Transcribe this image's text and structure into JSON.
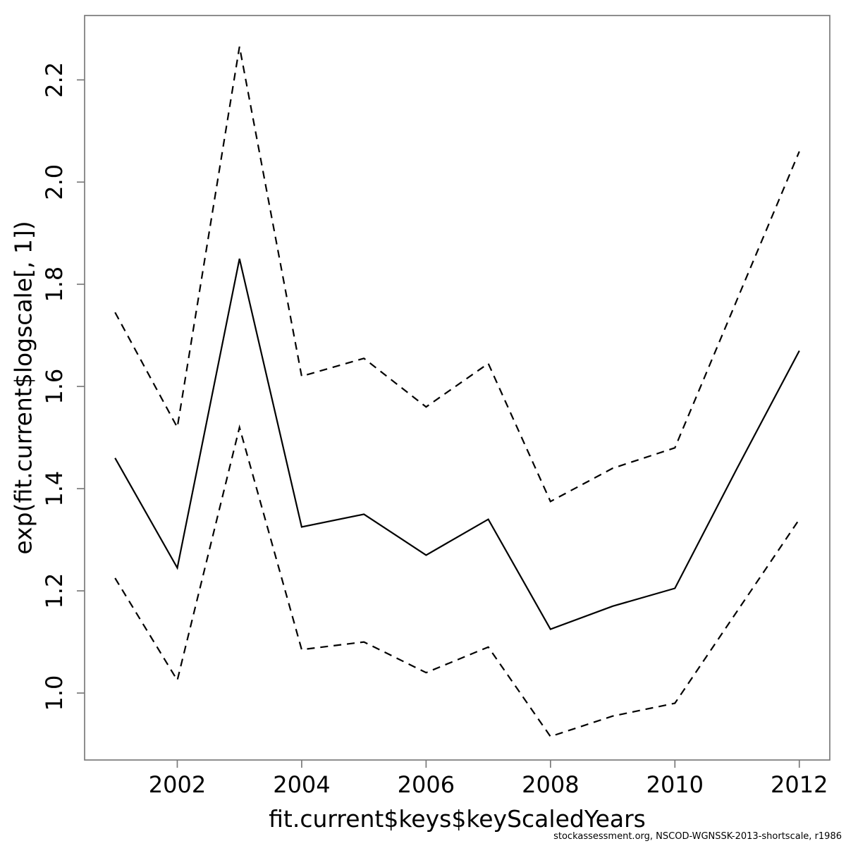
{
  "chart_data": {
    "type": "line",
    "title": "",
    "xlabel": "fit.current$keys$keyScaledYears",
    "ylabel": "exp(fit.current$logscale[, 1])",
    "x": [
      2001,
      2002,
      2003,
      2004,
      2005,
      2006,
      2007,
      2008,
      2009,
      2010,
      2011,
      2012
    ],
    "series": [
      {
        "name": "estimate",
        "style": "solid",
        "values": [
          1.46,
          1.245,
          1.85,
          1.325,
          1.35,
          1.27,
          1.34,
          1.125,
          1.17,
          1.205,
          1.44,
          1.67
        ]
      },
      {
        "name": "upper-confidence-bound",
        "style": "dashed",
        "values": [
          1.745,
          1.52,
          2.265,
          1.62,
          1.655,
          1.56,
          1.645,
          1.375,
          1.44,
          1.48,
          1.77,
          2.06
        ]
      },
      {
        "name": "lower-confidence-bound",
        "style": "dashed",
        "values": [
          1.225,
          1.025,
          1.52,
          1.085,
          1.1,
          1.04,
          1.09,
          0.915,
          0.955,
          0.98,
          1.16,
          1.34
        ]
      }
    ],
    "xlim": [
      2000.51,
      2012.49
    ],
    "ylim": [
      0.869,
      2.326
    ],
    "xticks": [
      2002,
      2004,
      2006,
      2008,
      2010,
      2012
    ],
    "xtick_labels": [
      "2002",
      "2004",
      "2006",
      "2008",
      "2010",
      "2012"
    ],
    "yticks": [
      1.0,
      1.2,
      1.4,
      1.6,
      1.8,
      2.0,
      2.2
    ],
    "ytick_labels": [
      "1.0",
      "1.2",
      "1.4",
      "1.6",
      "1.8",
      "2.0",
      "2.2"
    ],
    "grid": false,
    "legend": null,
    "line_color": "#000000",
    "box_color": "#7a7a7a",
    "text_color": "#000000"
  },
  "footer": {
    "credit": "stockassessment.org, NSCOD-WGNSSK-2013-shortscale, r1986"
  }
}
